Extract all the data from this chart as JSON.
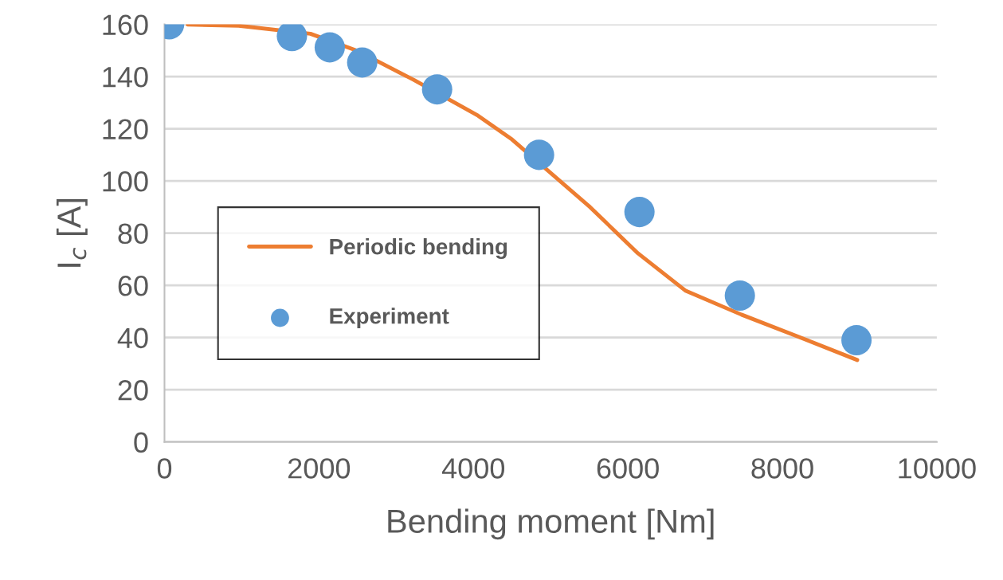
{
  "chart_data": {
    "type": "scatter",
    "xlabel": "Bending moment [Nm]",
    "ylabel": "I$_{c}$ [A]",
    "xlim": [
      0,
      10000
    ],
    "xticks": [
      0,
      2000,
      4000,
      6000,
      8000,
      10000
    ],
    "ylim": [
      0,
      160
    ],
    "yticks": [
      0,
      20,
      40,
      60,
      80,
      100,
      120,
      140,
      160
    ],
    "grid": "y",
    "legend": "left",
    "marker": "circle",
    "series": [
      {
        "name": "Periodic bending",
        "type": "line",
        "color": "#ed7d31",
        "marker": "none",
        "line_style": "solid",
        "x": [
          300,
          960,
          1890,
          2510,
          3230,
          4060,
          4500,
          5510,
          6130,
          6750,
          7470,
          8190,
          8970
        ],
        "values": [
          159.9,
          159.5,
          156.4,
          149.7,
          138.7,
          125,
          115.9,
          90,
          72.3,
          57.9,
          48.8,
          40.5,
          31.4
        ]
      },
      {
        "name": "Experiment",
        "color": "#5b9bd5",
        "x": [
          60,
          1650,
          2140,
          2560,
          3530,
          4850,
          6150,
          7450,
          8960
        ],
        "values": [
          160,
          155.5,
          151.2,
          145.4,
          135.1,
          110,
          88.1,
          56.1,
          39.0
        ]
      }
    ]
  }
}
